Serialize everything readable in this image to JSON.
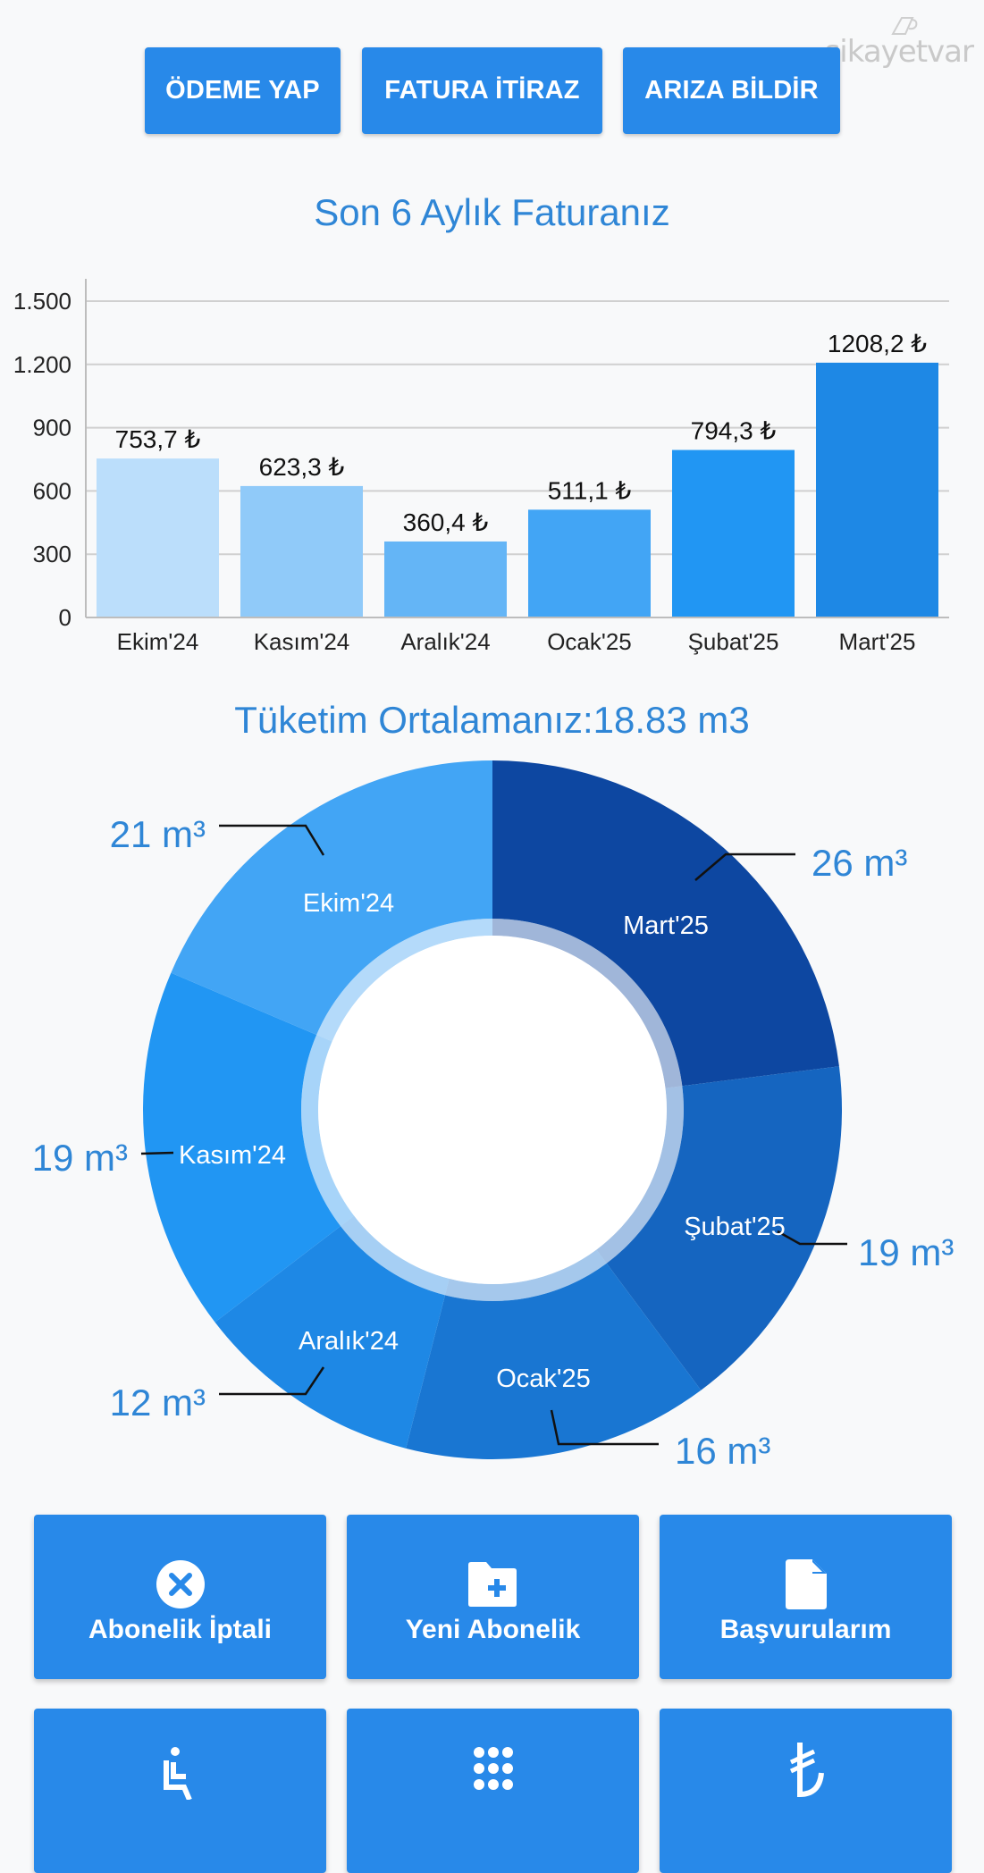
{
  "watermark": {
    "text": "şikayetvar"
  },
  "top_actions": [
    {
      "label": "ÖDEME YAP"
    },
    {
      "label": "FATURA İTİRAZ"
    },
    {
      "label": "ARIZA BİLDİR"
    }
  ],
  "bill_section": {
    "title": "Son 6 Aylık Faturanız"
  },
  "consumption_section": {
    "title": "Tüketim Ortalamanız:18.83 m3"
  },
  "tiles": [
    {
      "label": "Abonelik İptali",
      "icon": "cancel-circle-icon"
    },
    {
      "label": "Yeni Abonelik",
      "icon": "folder-add-icon"
    },
    {
      "label": "Başvurularım",
      "icon": "document-icon"
    },
    {
      "label": "",
      "icon": "accessible-icon"
    },
    {
      "label": "",
      "icon": "dialpad-icon"
    },
    {
      "label": "",
      "icon": "turkish-lira-icon"
    }
  ],
  "colors": {
    "primary": "#2889e9",
    "title": "#2f86d6",
    "background": "#f8f9fa"
  },
  "chart_data": [
    {
      "type": "bar",
      "title": "Son 6 Aylık Faturanız",
      "categories": [
        "Ekim'24",
        "Kasım'24",
        "Aralık'24",
        "Ocak'25",
        "Şubat'25",
        "Mart'25"
      ],
      "values": [
        753.7,
        623.3,
        360.4,
        511.1,
        794.3,
        1208.2
      ],
      "value_labels": [
        "753,7 ₺",
        "623,3 ₺",
        "360,4 ₺",
        "511,1 ₺",
        "794,3 ₺",
        "1208,2 ₺"
      ],
      "bar_colors": [
        "#bbdefb",
        "#90caf9",
        "#64b5f6",
        "#42a5f5",
        "#2196f3",
        "#1e88e5"
      ],
      "xlabel": "",
      "ylabel": "",
      "yticks": [
        "0",
        "300",
        "600",
        "900",
        "1.200",
        "1.500"
      ],
      "ylim": [
        0,
        1500
      ],
      "grid": true,
      "legend": "none"
    },
    {
      "type": "pie",
      "subtype": "donut",
      "title": "Tüketim Ortalamanız:18.83 m3",
      "categories": [
        "Mart'25",
        "Şubat'25",
        "Ocak'25",
        "Aralık'24",
        "Kasım'24",
        "Ekim'24"
      ],
      "values": [
        26,
        19,
        16,
        12,
        19,
        21
      ],
      "value_labels": [
        "26 m³",
        "19 m³",
        "16 m³",
        "12 m³",
        "19 m³",
        "21 m³"
      ],
      "unit": "m³",
      "slice_colors": [
        "#0d47a1",
        "#1565c0",
        "#1976d2",
        "#1e88e5",
        "#2196f3",
        "#42a5f5"
      ],
      "legend": "none"
    }
  ]
}
